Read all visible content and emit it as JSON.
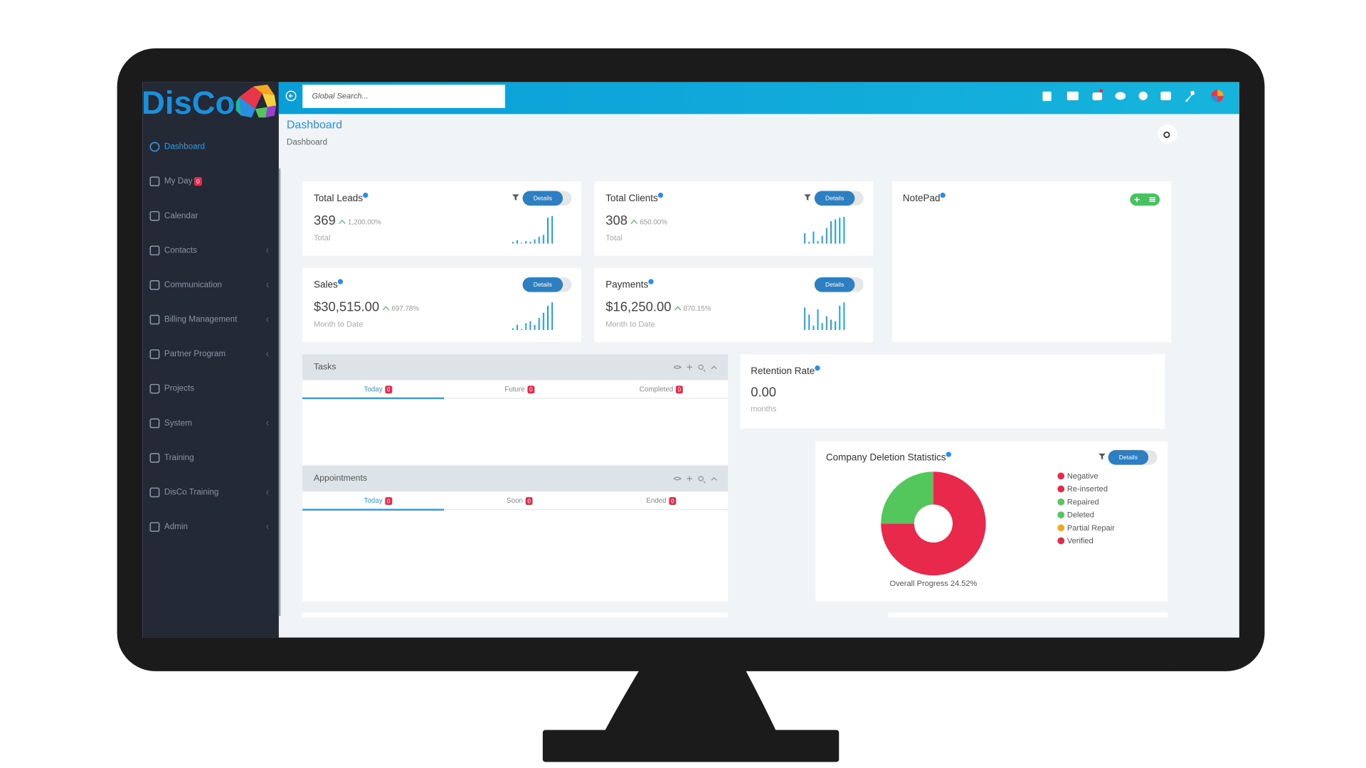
{
  "brand": "DisCo",
  "search_placeholder": "Global Search...",
  "page": {
    "title": "Dashboard",
    "breadcrumb": "Dashboard"
  },
  "sidebar": {
    "items": [
      {
        "label": "Dashboard",
        "active": true
      },
      {
        "label": "My Day",
        "badge": "0"
      },
      {
        "label": "Calendar"
      },
      {
        "label": "Contacts",
        "submenu": true
      },
      {
        "label": "Communication",
        "submenu": true
      },
      {
        "label": "Billing Management",
        "submenu": true
      },
      {
        "label": "Partner Program",
        "submenu": true
      },
      {
        "label": "Projects"
      },
      {
        "label": "System",
        "submenu": true
      },
      {
        "label": "Training"
      },
      {
        "label": "DisCo Training",
        "submenu": true
      },
      {
        "label": "Admin",
        "submenu": true
      }
    ]
  },
  "stats": [
    {
      "title": "Total Leads",
      "value": "369",
      "change": "1,200.00%",
      "caption": "Total",
      "button": "Details",
      "filter": true,
      "spark": [
        2,
        4,
        1,
        3,
        2,
        5,
        8,
        10,
        30,
        32
      ]
    },
    {
      "title": "Total Clients",
      "value": "308",
      "change": "650.00%",
      "caption": "Total",
      "button": "Details",
      "filter": true,
      "spark": [
        12,
        2,
        14,
        3,
        9,
        18,
        26,
        28,
        30,
        31
      ]
    },
    {
      "title": "Sales",
      "value": "$30,515.00",
      "change": "697.78%",
      "caption": "Month to Date",
      "button": "Details",
      "spark": [
        2,
        6,
        1,
        8,
        10,
        6,
        14,
        20,
        28,
        32
      ]
    },
    {
      "title": "Payments",
      "value": "$16,250.00",
      "change": "870.15%",
      "caption": "Month to Date",
      "button": "Details",
      "spark": [
        26,
        18,
        5,
        24,
        8,
        16,
        12,
        10,
        28,
        32
      ]
    }
  ],
  "notepad": {
    "title": "NotePad"
  },
  "tasks": {
    "title": "Tasks",
    "tabs": [
      {
        "label": "Today",
        "badge": "0"
      },
      {
        "label": "Future",
        "badge": "0"
      },
      {
        "label": "Completed",
        "badge": "0"
      }
    ]
  },
  "appointments": {
    "title": "Appointments",
    "tabs": [
      {
        "label": "Today",
        "badge": "0"
      },
      {
        "label": "Soon",
        "badge": "0"
      },
      {
        "label": "Ended",
        "badge": "0"
      }
    ]
  },
  "retention": {
    "title": "Retention Rate",
    "value": "0.00",
    "caption": "months"
  },
  "deletion": {
    "title": "Company Deletion Statistics",
    "button": "Details",
    "legend": [
      {
        "name": "Negative",
        "color": "#e8294b",
        "value": 0
      },
      {
        "name": "Re-inserted",
        "color": "#e8294b",
        "value": 75
      },
      {
        "name": "Repaired",
        "color": "#53c75b",
        "value": 25
      },
      {
        "name": "Deleted",
        "color": "#53c75b",
        "value": 0
      },
      {
        "name": "Partial Repair",
        "color": "#f5a623",
        "value": 0
      },
      {
        "name": "Verified",
        "color": "#e8294b",
        "value": 0
      }
    ],
    "footer": "Overall Progress 24.52%"
  }
}
